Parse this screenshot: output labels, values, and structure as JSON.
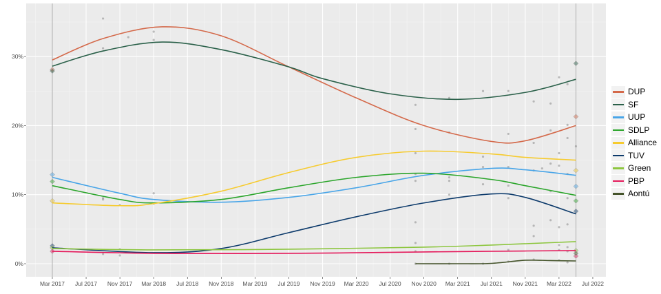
{
  "chart_data": {
    "type": "line",
    "title": "",
    "xlabel": "",
    "ylabel": "",
    "x_range": [
      "2016-12",
      "2022-08"
    ],
    "ylim": [
      -1.5,
      38
    ],
    "y_ticks": [
      {
        "value": 0,
        "label": "0%"
      },
      {
        "value": 10,
        "label": "10%"
      },
      {
        "value": 20,
        "label": "20%"
      },
      {
        "value": 30,
        "label": "30%"
      }
    ],
    "x_ticks": [
      {
        "date": "2017-03",
        "label": "Mar 2017"
      },
      {
        "date": "2017-07",
        "label": "Jul 2017"
      },
      {
        "date": "2017-11",
        "label": "Nov 2017"
      },
      {
        "date": "2018-03",
        "label": "Mar 2018"
      },
      {
        "date": "2018-07",
        "label": "Jul 2018"
      },
      {
        "date": "2018-11",
        "label": "Nov 2018"
      },
      {
        "date": "2019-03",
        "label": "Mar 2019"
      },
      {
        "date": "2019-07",
        "label": "Jul 2019"
      },
      {
        "date": "2019-11",
        "label": "Nov 2019"
      },
      {
        "date": "2020-03",
        "label": "Mar 2020"
      },
      {
        "date": "2020-07",
        "label": "Jul 2020"
      },
      {
        "date": "2020-11",
        "label": "Nov 2020"
      },
      {
        "date": "2021-03",
        "label": "Mar 2021"
      },
      {
        "date": "2021-07",
        "label": "Jul 2021"
      },
      {
        "date": "2021-11",
        "label": "Nov 2021"
      },
      {
        "date": "2022-03",
        "label": "Mar 2022"
      },
      {
        "date": "2022-07",
        "label": "Jul 2022"
      }
    ],
    "election_lines": [
      "2017-03",
      "2022-05"
    ],
    "grid": true,
    "legend_position": "right",
    "series": [
      {
        "name": "DUP",
        "color": "#d4694a",
        "trend": [
          [
            "2017-03",
            29.5
          ],
          [
            "2017-09",
            32.6
          ],
          [
            "2018-04",
            34.3
          ],
          [
            "2018-11",
            33
          ],
          [
            "2019-07",
            28.5
          ],
          [
            "2020-03",
            24
          ],
          [
            "2020-11",
            20
          ],
          [
            "2021-07",
            17.7
          ],
          [
            "2021-11",
            17.8
          ],
          [
            "2022-05",
            20
          ]
        ],
        "polls": [
          [
            "2017-09",
            35.5
          ],
          [
            "2017-12",
            32.8
          ],
          [
            "2018-03",
            33.6
          ],
          [
            "2020-10",
            19.5
          ],
          [
            "2021-02",
            19
          ],
          [
            "2021-09",
            18.8
          ],
          [
            "2021-12",
            17.5
          ],
          [
            "2022-02",
            19.3
          ],
          [
            "2022-04",
            18.2
          ],
          [
            "2022-04",
            20.1
          ]
        ],
        "results": [
          [
            "2017-03",
            28.1
          ],
          [
            "2022-05",
            21.3
          ]
        ]
      },
      {
        "name": "SF",
        "color": "#2a6049",
        "trend": [
          [
            "2017-03",
            28.6
          ],
          [
            "2017-09",
            30.8
          ],
          [
            "2018-04",
            32.1
          ],
          [
            "2018-11",
            31
          ],
          [
            "2019-07",
            28.5
          ],
          [
            "2019-11",
            26.8
          ],
          [
            "2020-07",
            24.6
          ],
          [
            "2021-03",
            23.8
          ],
          [
            "2021-11",
            24.8
          ],
          [
            "2022-05",
            26.7
          ]
        ],
        "polls": [
          [
            "2017-09",
            31.2
          ],
          [
            "2018-03",
            32.4
          ],
          [
            "2020-10",
            23
          ],
          [
            "2021-02",
            24
          ],
          [
            "2021-06",
            25
          ],
          [
            "2021-09",
            25
          ],
          [
            "2021-12",
            23.5
          ],
          [
            "2022-02",
            23.2
          ],
          [
            "2022-03",
            27
          ],
          [
            "2022-04",
            26
          ]
        ],
        "results": [
          [
            "2017-03",
            27.9
          ],
          [
            "2022-05",
            29.0
          ]
        ]
      },
      {
        "name": "UUP",
        "color": "#48a5e8",
        "trend": [
          [
            "2017-03",
            12.5
          ],
          [
            "2017-11",
            10.2
          ],
          [
            "2018-03",
            9.3
          ],
          [
            "2018-11",
            8.9
          ],
          [
            "2019-07",
            9.6
          ],
          [
            "2020-03",
            11
          ],
          [
            "2020-11",
            12.8
          ],
          [
            "2021-07",
            13.8
          ],
          [
            "2021-11",
            13.6
          ],
          [
            "2022-05",
            12.8
          ]
        ],
        "polls": [
          [
            "2017-09",
            9.5
          ],
          [
            "2018-03",
            10.2
          ],
          [
            "2020-10",
            12
          ],
          [
            "2021-02",
            12.5
          ],
          [
            "2021-06",
            14
          ],
          [
            "2021-09",
            14
          ],
          [
            "2022-01",
            13.8
          ],
          [
            "2022-03",
            14.2
          ],
          [
            "2022-04",
            13
          ]
        ],
        "results": [
          [
            "2017-03",
            12.9
          ],
          [
            "2022-05",
            11.2
          ]
        ]
      },
      {
        "name": "SDLP",
        "color": "#2aa52a",
        "trend": [
          [
            "2017-03",
            11.3
          ],
          [
            "2017-11",
            9.3
          ],
          [
            "2018-03",
            8.8
          ],
          [
            "2018-11",
            9.3
          ],
          [
            "2019-07",
            11
          ],
          [
            "2020-03",
            12.5
          ],
          [
            "2020-11",
            13.1
          ],
          [
            "2021-07",
            12.2
          ],
          [
            "2021-11",
            11.3
          ],
          [
            "2022-05",
            9.9
          ]
        ],
        "polls": [
          [
            "2017-09",
            9.3
          ],
          [
            "2018-03",
            8.7
          ],
          [
            "2020-10",
            13
          ],
          [
            "2021-02",
            12
          ],
          [
            "2021-06",
            11.5
          ],
          [
            "2021-09",
            11.3
          ],
          [
            "2022-02",
            10.5
          ],
          [
            "2022-04",
            9.5
          ]
        ],
        "results": [
          [
            "2017-03",
            11.9
          ],
          [
            "2022-05",
            9.1
          ]
        ]
      },
      {
        "name": "Alliance",
        "color": "#f6cb2f",
        "trend": [
          [
            "2017-03",
            8.8
          ],
          [
            "2017-11",
            8.4
          ],
          [
            "2018-03",
            8.7
          ],
          [
            "2018-11",
            10.5
          ],
          [
            "2019-07",
            13.2
          ],
          [
            "2020-03",
            15.4
          ],
          [
            "2020-11",
            16.3
          ],
          [
            "2021-07",
            15.9
          ],
          [
            "2021-11",
            15.4
          ],
          [
            "2022-05",
            15
          ]
        ],
        "polls": [
          [
            "2017-11",
            8.5
          ],
          [
            "2020-10",
            16
          ],
          [
            "2021-06",
            15.5
          ],
          [
            "2021-12",
            13.5
          ],
          [
            "2022-02",
            14.5
          ],
          [
            "2022-03",
            16
          ],
          [
            "2022-05",
            17
          ]
        ],
        "results": [
          [
            "2017-03",
            9.1
          ],
          [
            "2022-05",
            13.5
          ]
        ]
      },
      {
        "name": "TUV",
        "color": "#0c3a6b",
        "trend": [
          [
            "2017-03",
            2.3
          ],
          [
            "2018-03",
            1.6
          ],
          [
            "2018-11",
            2.2
          ],
          [
            "2019-07",
            4.5
          ],
          [
            "2020-03",
            6.8
          ],
          [
            "2020-11",
            8.8
          ],
          [
            "2021-07",
            10.1
          ],
          [
            "2021-11",
            9.6
          ],
          [
            "2022-05",
            7.2
          ]
        ],
        "polls": [
          [
            "2020-10",
            6
          ],
          [
            "2021-02",
            10
          ],
          [
            "2021-09",
            9.5
          ],
          [
            "2021-12",
            5.5
          ],
          [
            "2022-02",
            6.3
          ],
          [
            "2022-03",
            5.3
          ],
          [
            "2022-04",
            5.7
          ]
        ],
        "results": [
          [
            "2017-03",
            2.6
          ],
          [
            "2022-05",
            7.6
          ]
        ]
      },
      {
        "name": "Green",
        "color": "#8dc63f",
        "trend": [
          [
            "2017-03",
            2.2
          ],
          [
            "2018-03",
            2.0
          ],
          [
            "2019-07",
            2.1
          ],
          [
            "2020-11",
            2.4
          ],
          [
            "2021-07",
            2.7
          ],
          [
            "2022-05",
            3.2
          ]
        ],
        "polls": [
          [
            "2017-11",
            2.1
          ],
          [
            "2020-10",
            3
          ],
          [
            "2021-12",
            4
          ],
          [
            "2022-03",
            2.7
          ],
          [
            "2022-04",
            2.4
          ]
        ],
        "results": [
          [
            "2017-03",
            2.3
          ],
          [
            "2022-05",
            1.9
          ]
        ]
      },
      {
        "name": "PBP",
        "color": "#e4185a",
        "trend": [
          [
            "2017-03",
            1.8
          ],
          [
            "2018-03",
            1.5
          ],
          [
            "2019-07",
            1.5
          ],
          [
            "2020-11",
            1.7
          ],
          [
            "2021-07",
            1.8
          ],
          [
            "2022-05",
            1.9
          ]
        ],
        "polls": [
          [
            "2017-09",
            1.4
          ],
          [
            "2017-11",
            1.2
          ],
          [
            "2020-10",
            1.8
          ],
          [
            "2021-09",
            2
          ],
          [
            "2022-03",
            2
          ],
          [
            "2022-04",
            1.8
          ]
        ],
        "results": [
          [
            "2017-03",
            1.8
          ],
          [
            "2022-05",
            1.1
          ]
        ]
      },
      {
        "name": "Aontú",
        "color": "#44532a",
        "trend": [
          [
            "2020-10",
            0
          ],
          [
            "2021-03",
            0
          ],
          [
            "2021-07",
            0.05
          ],
          [
            "2021-11",
            0.5
          ],
          [
            "2022-02",
            0.45
          ],
          [
            "2022-05",
            0.4
          ]
        ],
        "polls": [
          [
            "2020-10",
            0
          ],
          [
            "2021-02",
            0
          ],
          [
            "2021-06",
            0
          ],
          [
            "2021-09",
            0.3
          ],
          [
            "2021-12",
            0.6
          ],
          [
            "2022-03",
            0.5
          ],
          [
            "2022-04",
            0.2
          ]
        ],
        "results": [
          [
            "2022-05",
            1.5
          ]
        ]
      }
    ]
  }
}
